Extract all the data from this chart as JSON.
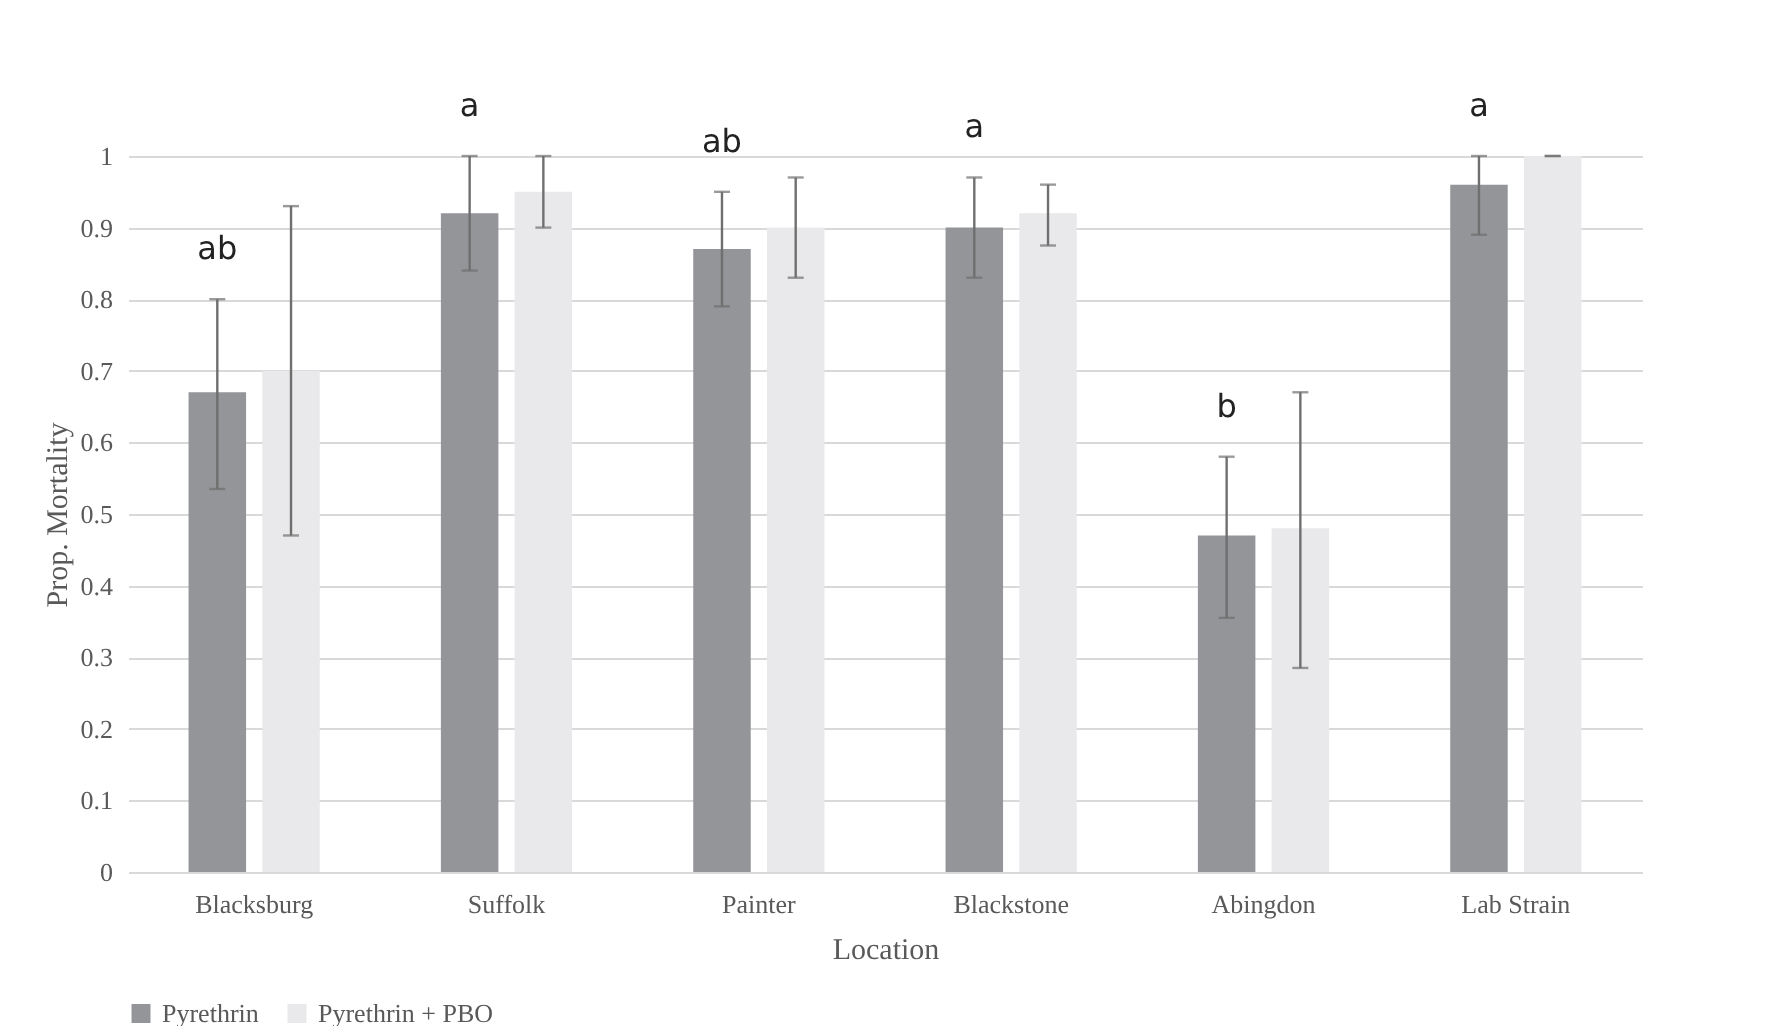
{
  "chart_data": {
    "type": "bar",
    "xlabel": "Location",
    "ylabel": "Prop. Mortality",
    "categories": [
      "Blacksburg",
      "Suffolk",
      "Painter",
      "Blackstone",
      "Abingdon",
      "Lab Strain"
    ],
    "series": [
      {
        "name": "Pyrethrin",
        "color": "#939598",
        "values": [
          0.67,
          0.92,
          0.87,
          0.9,
          0.47,
          0.96
        ],
        "errors": [
          [
            0.535,
            0.8
          ],
          [
            0.84,
            1.0
          ],
          [
            0.79,
            0.95
          ],
          [
            0.83,
            0.97
          ],
          [
            0.355,
            0.58
          ],
          [
            0.89,
            1.0
          ]
        ]
      },
      {
        "name": "Pyrethrin + PBO",
        "color": "#e9e9eb",
        "values": [
          0.7,
          0.95,
          0.9,
          0.92,
          0.48,
          1.0
        ],
        "errors": [
          [
            0.47,
            0.93
          ],
          [
            0.9,
            1.0
          ],
          [
            0.83,
            0.97
          ],
          [
            0.875,
            0.96
          ],
          [
            0.285,
            0.67
          ],
          [
            1.0,
            1.0
          ]
        ]
      }
    ],
    "annotations": [
      "ab",
      "a",
      "ab",
      "a",
      "b",
      "a"
    ],
    "ylim": [
      0,
      1
    ],
    "yticks": [
      0,
      0.1,
      0.2,
      0.3,
      0.4,
      0.5,
      0.6,
      0.7,
      0.8,
      0.9,
      1
    ],
    "grid": "y",
    "legend": "bottom"
  }
}
